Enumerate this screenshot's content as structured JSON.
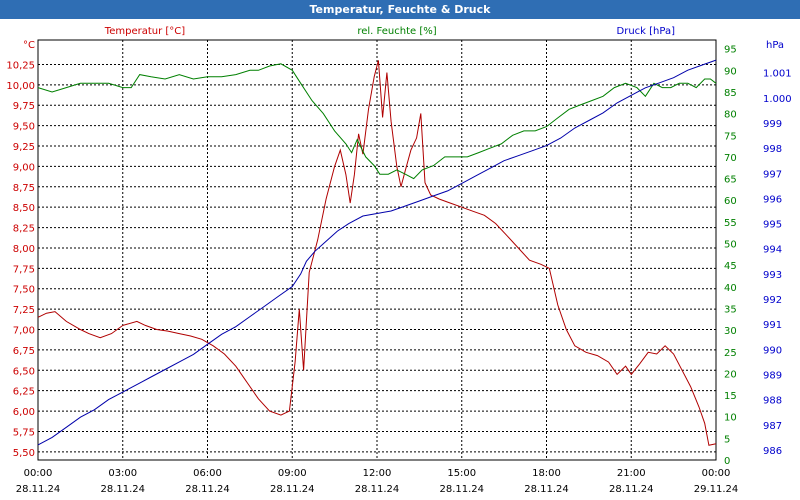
{
  "chart_data": {
    "type": "line",
    "title": "Temperatur, Feuchte & Druck",
    "x_ticks": [
      {
        "time": "00:00",
        "date": "28.11.24"
      },
      {
        "time": "03:00",
        "date": "28.11.24"
      },
      {
        "time": "06:00",
        "date": "28.11.24"
      },
      {
        "time": "09:00",
        "date": "28.11.24"
      },
      {
        "time": "12:00",
        "date": "28.11.24"
      },
      {
        "time": "15:00",
        "date": "28.11.24"
      },
      {
        "time": "18:00",
        "date": "28.11.24"
      },
      {
        "time": "21:00",
        "date": "28.11.24"
      },
      {
        "time": "00:00",
        "date": "29.11.24"
      }
    ],
    "xlim_hours": [
      0,
      24
    ],
    "axes": {
      "temperature": {
        "unit_label": "°C",
        "ylim": [
          5.4,
          10.55
        ],
        "ticks": [
          "5,50",
          "5,75",
          "6,00",
          "6,25",
          "6,50",
          "6,75",
          "7,00",
          "7,25",
          "7,50",
          "7,75",
          "8,00",
          "8,25",
          "8,50",
          "8,75",
          "9,00",
          "9,25",
          "9,50",
          "9,75",
          "10,00",
          "10,25"
        ],
        "color": "#cc0000"
      },
      "humidity": {
        "unit_label": "%",
        "ylim": [
          0,
          97
        ],
        "ticks": [
          "0",
          "5",
          "10",
          "15",
          "20",
          "25",
          "30",
          "35",
          "40",
          "45",
          "50",
          "55",
          "60",
          "65",
          "70",
          "75",
          "80",
          "85",
          "90",
          "95"
        ],
        "color": "#008000"
      },
      "pressure": {
        "unit_label": "hPa",
        "ylim": [
          985.6,
          1002.3
        ],
        "ticks": [
          "986",
          "987",
          "988",
          "989",
          "990",
          "991",
          "992",
          "993",
          "994",
          "995",
          "996",
          "997",
          "998",
          "999",
          "1.000",
          "1.001"
        ],
        "color": "#0000cc"
      }
    },
    "series": [
      {
        "name": "Temperatur [°C]",
        "axis": "temperature",
        "color": "#b00000",
        "points": [
          [
            0,
            7.15
          ],
          [
            0.3,
            7.2
          ],
          [
            0.6,
            7.22
          ],
          [
            1,
            7.1
          ],
          [
            1.5,
            7.0
          ],
          [
            1.8,
            6.95
          ],
          [
            2.2,
            6.9
          ],
          [
            2.6,
            6.95
          ],
          [
            3,
            7.05
          ],
          [
            3.5,
            7.1
          ],
          [
            3.8,
            7.05
          ],
          [
            4.2,
            7.0
          ],
          [
            4.6,
            6.98
          ],
          [
            5,
            6.95
          ],
          [
            5.4,
            6.92
          ],
          [
            5.8,
            6.88
          ],
          [
            6.2,
            6.8
          ],
          [
            6.6,
            6.7
          ],
          [
            7,
            6.55
          ],
          [
            7.4,
            6.35
          ],
          [
            7.8,
            6.15
          ],
          [
            8.2,
            6.0
          ],
          [
            8.6,
            5.95
          ],
          [
            8.9,
            6.0
          ],
          [
            9.1,
            6.6
          ],
          [
            9.25,
            7.25
          ],
          [
            9.4,
            6.5
          ],
          [
            9.6,
            7.7
          ],
          [
            9.9,
            8.1
          ],
          [
            10.2,
            8.6
          ],
          [
            10.5,
            9.0
          ],
          [
            10.7,
            9.2
          ],
          [
            10.9,
            8.9
          ],
          [
            11.05,
            8.55
          ],
          [
            11.2,
            8.9
          ],
          [
            11.35,
            9.4
          ],
          [
            11.5,
            9.15
          ],
          [
            11.7,
            9.7
          ],
          [
            11.9,
            10.1
          ],
          [
            12.05,
            10.3
          ],
          [
            12.2,
            9.6
          ],
          [
            12.35,
            10.15
          ],
          [
            12.5,
            9.55
          ],
          [
            12.7,
            9.0
          ],
          [
            12.85,
            8.75
          ],
          [
            13,
            8.95
          ],
          [
            13.2,
            9.2
          ],
          [
            13.4,
            9.35
          ],
          [
            13.55,
            9.65
          ],
          [
            13.7,
            8.8
          ],
          [
            13.9,
            8.65
          ],
          [
            14.2,
            8.6
          ],
          [
            14.6,
            8.55
          ],
          [
            15,
            8.5
          ],
          [
            15.4,
            8.45
          ],
          [
            15.8,
            8.4
          ],
          [
            16.2,
            8.3
          ],
          [
            16.6,
            8.15
          ],
          [
            17,
            8.0
          ],
          [
            17.4,
            7.85
          ],
          [
            17.8,
            7.8
          ],
          [
            18.1,
            7.75
          ],
          [
            18.4,
            7.3
          ],
          [
            18.7,
            7.0
          ],
          [
            19,
            6.8
          ],
          [
            19.4,
            6.72
          ],
          [
            19.8,
            6.68
          ],
          [
            20.2,
            6.6
          ],
          [
            20.5,
            6.45
          ],
          [
            20.8,
            6.55
          ],
          [
            21,
            6.45
          ],
          [
            21.3,
            6.58
          ],
          [
            21.6,
            6.72
          ],
          [
            21.9,
            6.7
          ],
          [
            22.2,
            6.8
          ],
          [
            22.5,
            6.7
          ],
          [
            22.8,
            6.5
          ],
          [
            23.1,
            6.3
          ],
          [
            23.4,
            6.05
          ],
          [
            23.6,
            5.85
          ],
          [
            23.75,
            5.58
          ],
          [
            24,
            5.6
          ]
        ]
      },
      {
        "name": "rel. Feuchte [%]",
        "axis": "humidity",
        "color": "#008000",
        "points": [
          [
            0,
            86
          ],
          [
            0.5,
            85
          ],
          [
            1,
            86
          ],
          [
            1.5,
            87
          ],
          [
            2,
            87
          ],
          [
            2.5,
            87
          ],
          [
            3,
            86
          ],
          [
            3.3,
            86
          ],
          [
            3.6,
            89
          ],
          [
            4,
            88.5
          ],
          [
            4.5,
            88
          ],
          [
            5,
            89
          ],
          [
            5.5,
            88
          ],
          [
            6,
            88.5
          ],
          [
            6.5,
            88.5
          ],
          [
            7,
            89
          ],
          [
            7.5,
            90
          ],
          [
            7.8,
            90
          ],
          [
            8.2,
            91
          ],
          [
            8.6,
            91.5
          ],
          [
            9,
            90
          ],
          [
            9.3,
            87
          ],
          [
            9.7,
            83
          ],
          [
            10.1,
            80
          ],
          [
            10.5,
            76
          ],
          [
            10.9,
            73
          ],
          [
            11.1,
            71
          ],
          [
            11.3,
            74
          ],
          [
            11.6,
            70
          ],
          [
            11.9,
            68
          ],
          [
            12.1,
            66
          ],
          [
            12.4,
            66
          ],
          [
            12.7,
            67
          ],
          [
            13,
            66
          ],
          [
            13.3,
            65
          ],
          [
            13.6,
            67
          ],
          [
            14,
            68
          ],
          [
            14.4,
            70
          ],
          [
            14.8,
            70
          ],
          [
            15.2,
            70
          ],
          [
            15.6,
            71
          ],
          [
            16,
            72
          ],
          [
            16.4,
            73
          ],
          [
            16.8,
            75
          ],
          [
            17.2,
            76
          ],
          [
            17.6,
            76
          ],
          [
            18,
            77
          ],
          [
            18.4,
            79
          ],
          [
            18.8,
            81
          ],
          [
            19.2,
            82
          ],
          [
            19.6,
            83
          ],
          [
            20,
            84
          ],
          [
            20.4,
            86
          ],
          [
            20.8,
            87
          ],
          [
            21.2,
            86
          ],
          [
            21.5,
            84
          ],
          [
            21.8,
            87
          ],
          [
            22.1,
            86
          ],
          [
            22.4,
            86
          ],
          [
            22.7,
            87
          ],
          [
            23,
            87
          ],
          [
            23.3,
            86
          ],
          [
            23.6,
            88
          ],
          [
            23.8,
            88
          ],
          [
            24,
            87
          ]
        ]
      },
      {
        "name": "Druck [hPa]",
        "axis": "pressure",
        "color": "#0000aa",
        "points": [
          [
            0,
            986.2
          ],
          [
            0.5,
            986.5
          ],
          [
            1,
            986.9
          ],
          [
            1.5,
            987.3
          ],
          [
            2,
            987.6
          ],
          [
            2.5,
            988.0
          ],
          [
            3,
            988.3
          ],
          [
            3.5,
            988.6
          ],
          [
            4,
            988.9
          ],
          [
            4.5,
            989.2
          ],
          [
            5,
            989.5
          ],
          [
            5.5,
            989.8
          ],
          [
            6,
            990.2
          ],
          [
            6.5,
            990.6
          ],
          [
            7,
            990.9
          ],
          [
            7.5,
            991.3
          ],
          [
            8,
            991.7
          ],
          [
            8.5,
            992.1
          ],
          [
            9,
            992.5
          ],
          [
            9.3,
            993.0
          ],
          [
            9.5,
            993.5
          ],
          [
            9.8,
            993.9
          ],
          [
            10.2,
            994.3
          ],
          [
            10.6,
            994.7
          ],
          [
            11,
            995.0
          ],
          [
            11.5,
            995.3
          ],
          [
            12,
            995.4
          ],
          [
            12.5,
            995.5
          ],
          [
            13,
            995.7
          ],
          [
            13.5,
            995.9
          ],
          [
            14,
            996.1
          ],
          [
            14.5,
            996.3
          ],
          [
            15,
            996.6
          ],
          [
            15.5,
            996.9
          ],
          [
            16,
            997.2
          ],
          [
            16.5,
            997.5
          ],
          [
            17,
            997.7
          ],
          [
            17.5,
            997.9
          ],
          [
            18,
            998.1
          ],
          [
            18.5,
            998.4
          ],
          [
            19,
            998.8
          ],
          [
            19.5,
            999.1
          ],
          [
            20,
            999.4
          ],
          [
            20.5,
            999.8
          ],
          [
            21,
            1000.1
          ],
          [
            21.5,
            1000.4
          ],
          [
            22,
            1000.6
          ],
          [
            22.5,
            1000.8
          ],
          [
            23,
            1001.1
          ],
          [
            23.5,
            1001.3
          ],
          [
            24,
            1001.5
          ]
        ]
      }
    ]
  }
}
